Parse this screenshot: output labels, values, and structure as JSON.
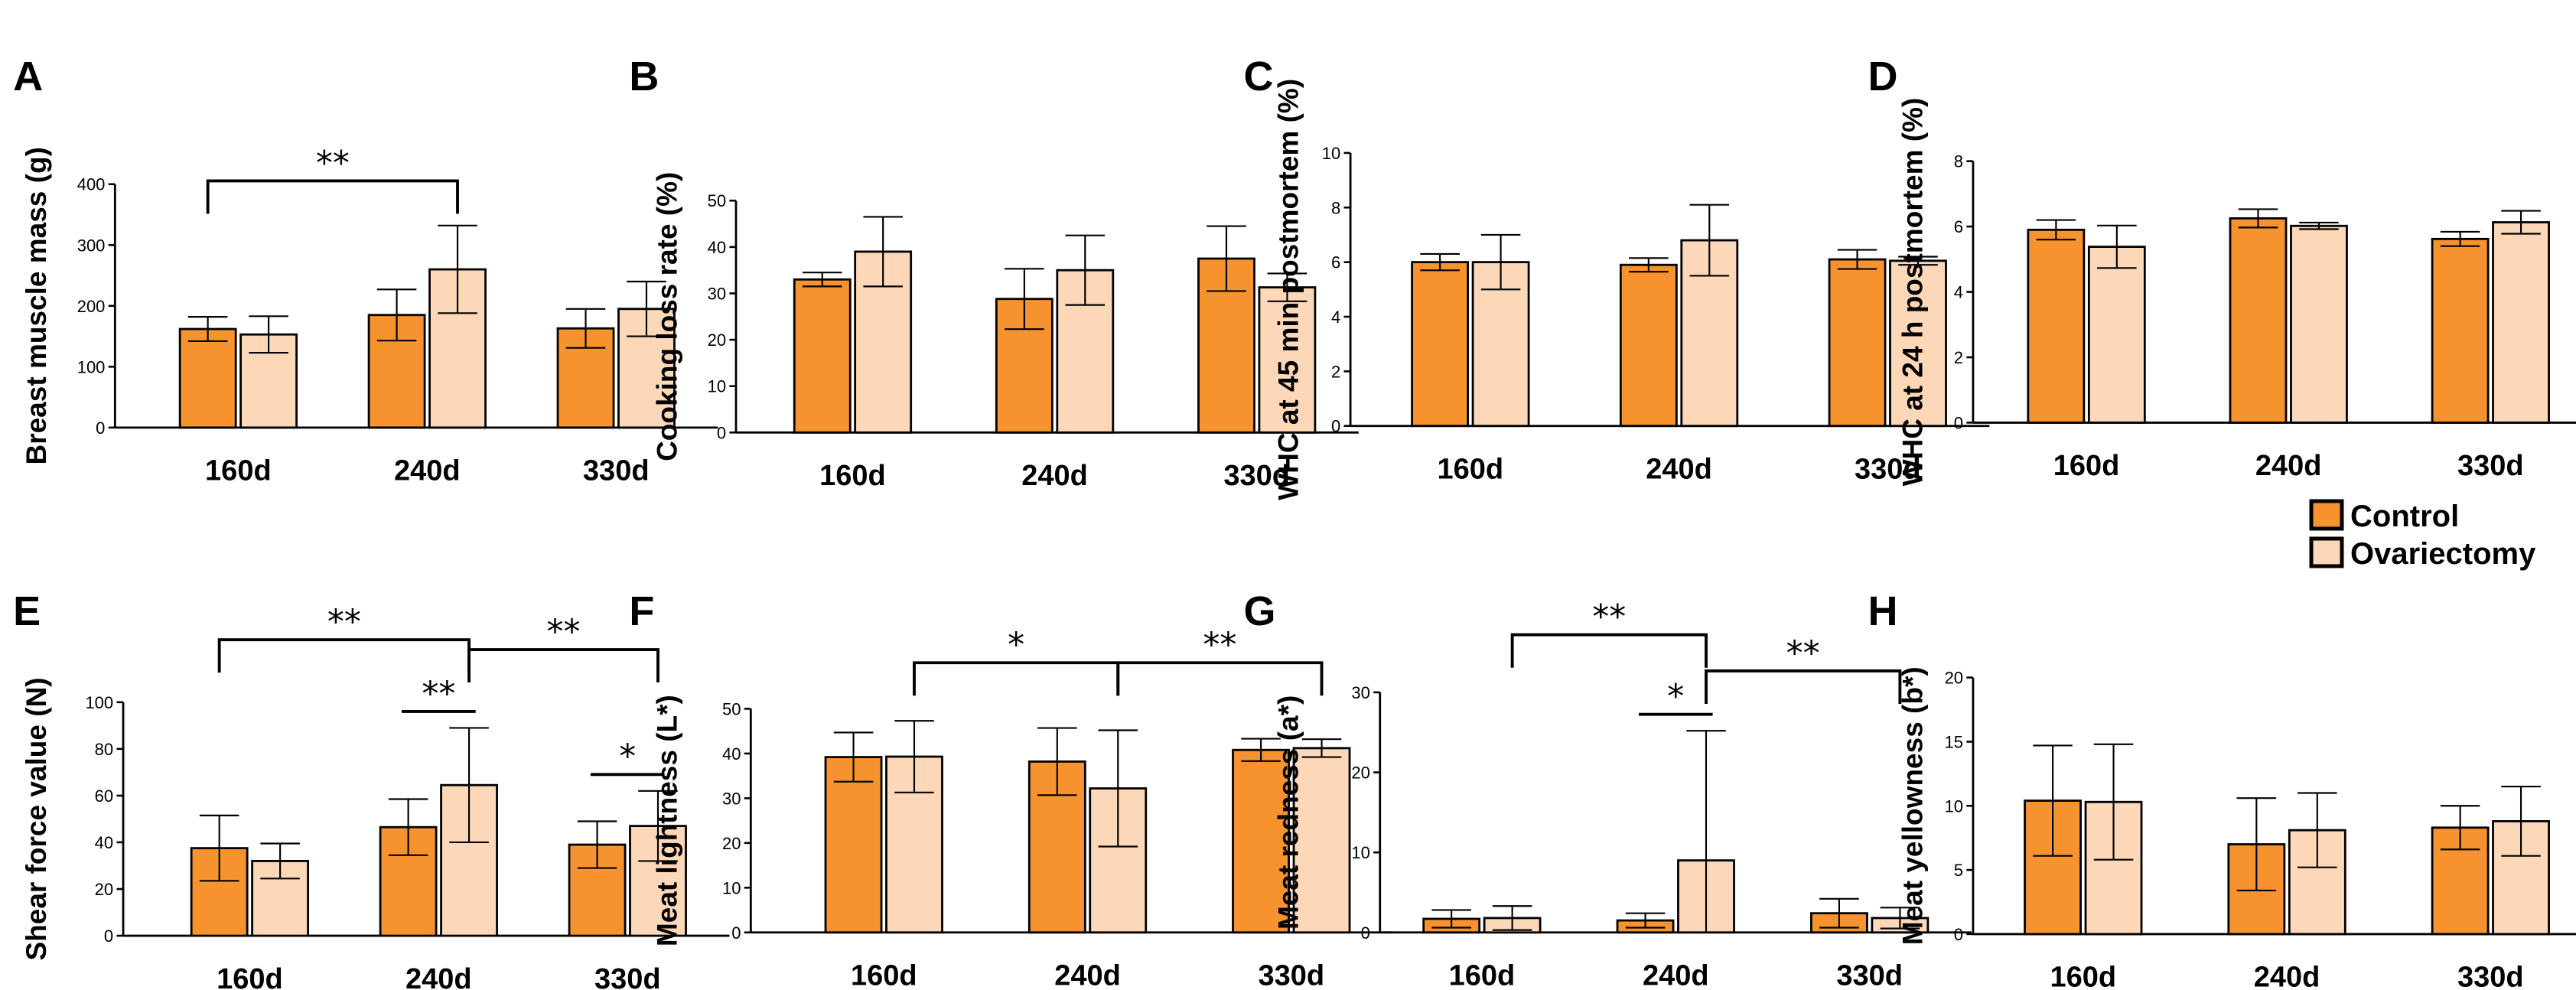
{
  "colors": {
    "control": "#F7932F",
    "ovariectomy": "#FDD8B8",
    "axis": "#000000"
  },
  "legend": {
    "placement": "right",
    "entries": [
      "Control",
      "Ovariectomy"
    ]
  },
  "chart_data": [
    {
      "panel": "A",
      "type": "bar",
      "ylabel": "Breast muscle mass (g)",
      "categories": [
        "160d",
        "240d",
        "330d"
      ],
      "ylim": [
        0,
        400
      ],
      "yticks": [
        0,
        100,
        200,
        300,
        400
      ],
      "series": [
        {
          "name": "Control",
          "values": [
            162,
            185,
            163
          ],
          "errors": [
            20,
            42,
            32
          ]
        },
        {
          "name": "Ovariectomy",
          "values": [
            153,
            260,
            195
          ],
          "errors": [
            30,
            72,
            45
          ]
        }
      ],
      "annotations": [
        {
          "label": "**",
          "from": [
            0,
            0
          ],
          "to": [
            1,
            1
          ]
        }
      ]
    },
    {
      "panel": "B",
      "type": "bar",
      "ylabel": "Cooking loss rate (%)",
      "categories": [
        "160d",
        "240d",
        "330d"
      ],
      "ylim": [
        0,
        50
      ],
      "yticks": [
        0,
        10,
        20,
        30,
        40,
        50
      ],
      "series": [
        {
          "name": "Control",
          "values": [
            33,
            28.8,
            37.5
          ],
          "errors": [
            1.5,
            6.5,
            7
          ]
        },
        {
          "name": "Ovariectomy",
          "values": [
            39,
            35,
            31.3
          ],
          "errors": [
            7.5,
            7.5,
            3
          ]
        }
      ],
      "annotations": []
    },
    {
      "panel": "C",
      "type": "bar",
      "ylabel": "WHC at 45 min postmortem (%)",
      "categories": [
        "160d",
        "240d",
        "330d"
      ],
      "ylim": [
        0,
        10
      ],
      "yticks": [
        0,
        2,
        4,
        6,
        8,
        10
      ],
      "series": [
        {
          "name": "Control",
          "values": [
            6.0,
            5.9,
            6.1
          ],
          "errors": [
            0.3,
            0.25,
            0.35
          ]
        },
        {
          "name": "Ovariectomy",
          "values": [
            6.0,
            6.8,
            6.05
          ],
          "errors": [
            1.0,
            1.3,
            0.15
          ]
        }
      ],
      "annotations": []
    },
    {
      "panel": "D",
      "type": "bar",
      "ylabel": "WHC at 24 h postmortem (%)",
      "categories": [
        "160d",
        "240d",
        "330d"
      ],
      "ylim": [
        0,
        8
      ],
      "yticks": [
        0,
        2,
        4,
        6,
        8
      ],
      "series": [
        {
          "name": "Control",
          "values": [
            5.9,
            6.25,
            5.62
          ],
          "errors": [
            0.3,
            0.28,
            0.22
          ]
        },
        {
          "name": "Ovariectomy",
          "values": [
            5.38,
            6.02,
            6.13
          ],
          "errors": [
            0.65,
            0.1,
            0.35
          ]
        }
      ],
      "annotations": []
    },
    {
      "panel": "E",
      "type": "bar",
      "ylabel": "Shear force value (N)",
      "categories": [
        "160d",
        "240d",
        "330d"
      ],
      "ylim": [
        0,
        100
      ],
      "yticks": [
        0,
        20,
        40,
        60,
        80,
        100
      ],
      "series": [
        {
          "name": "Control",
          "values": [
            37.5,
            46.5,
            39
          ],
          "errors": [
            14,
            12,
            10
          ]
        },
        {
          "name": "Ovariectomy",
          "values": [
            32,
            64.5,
            47
          ],
          "errors": [
            7.5,
            24.5,
            15
          ]
        }
      ],
      "annotations": [
        {
          "label": "**",
          "from": [
            0,
            0
          ],
          "to": [
            1,
            1
          ]
        },
        {
          "label": "**",
          "from": [
            1,
            1
          ],
          "to": [
            2,
            1
          ]
        },
        {
          "label": "**",
          "from": [
            1,
            0
          ],
          "to": [
            1,
            1
          ],
          "short": true
        },
        {
          "label": "*",
          "from": [
            2,
            0
          ],
          "to": [
            2,
            1
          ],
          "short": true
        }
      ]
    },
    {
      "panel": "F",
      "type": "bar",
      "ylabel": "Meat lightness (L*)",
      "categories": [
        "160d",
        "240d",
        "330d"
      ],
      "ylim": [
        0,
        50
      ],
      "yticks": [
        0,
        10,
        20,
        30,
        40,
        50
      ],
      "series": [
        {
          "name": "Control",
          "values": [
            39.2,
            38.2,
            40.8
          ],
          "errors": [
            5.5,
            7.5,
            2.5
          ]
        },
        {
          "name": "Ovariectomy",
          "values": [
            39.3,
            32.2,
            41.2
          ],
          "errors": [
            8,
            13,
            2
          ]
        }
      ],
      "annotations": [
        {
          "label": "*",
          "from": [
            0,
            1
          ],
          "to": [
            1,
            1
          ]
        },
        {
          "label": "**",
          "from": [
            1,
            1
          ],
          "to": [
            2,
            1
          ]
        }
      ]
    },
    {
      "panel": "G",
      "type": "bar",
      "ylabel": "Meat redness (a*)",
      "categories": [
        "160d",
        "240d",
        "330d"
      ],
      "ylim": [
        0,
        30
      ],
      "yticks": [
        0,
        10,
        20,
        30
      ],
      "series": [
        {
          "name": "Control",
          "values": [
            1.7,
            1.5,
            2.4
          ],
          "errors": [
            1.1,
            0.9,
            1.8
          ]
        },
        {
          "name": "Ovariectomy",
          "values": [
            1.8,
            9.0,
            1.8
          ],
          "errors": [
            1.5,
            16.2,
            1.3
          ]
        }
      ],
      "annotations": [
        {
          "label": "**",
          "from": [
            0,
            1
          ],
          "to": [
            1,
            1
          ]
        },
        {
          "label": "**",
          "from": [
            1,
            1
          ],
          "to": [
            2,
            1
          ]
        },
        {
          "label": "*",
          "from": [
            1,
            0
          ],
          "to": [
            1,
            1
          ],
          "short": true
        }
      ]
    },
    {
      "panel": "H",
      "type": "bar",
      "ylabel": "Meat yellowness (b*)",
      "categories": [
        "160d",
        "240d",
        "330d"
      ],
      "ylim": [
        0,
        20
      ],
      "yticks": [
        0,
        5,
        10,
        15,
        20
      ],
      "series": [
        {
          "name": "Control",
          "values": [
            10.4,
            7.0,
            8.3
          ],
          "errors": [
            4.3,
            3.6,
            1.7
          ]
        },
        {
          "name": "Ovariectomy",
          "values": [
            10.3,
            8.1,
            8.8
          ],
          "errors": [
            4.5,
            2.9,
            2.7
          ]
        }
      ],
      "annotations": []
    }
  ]
}
